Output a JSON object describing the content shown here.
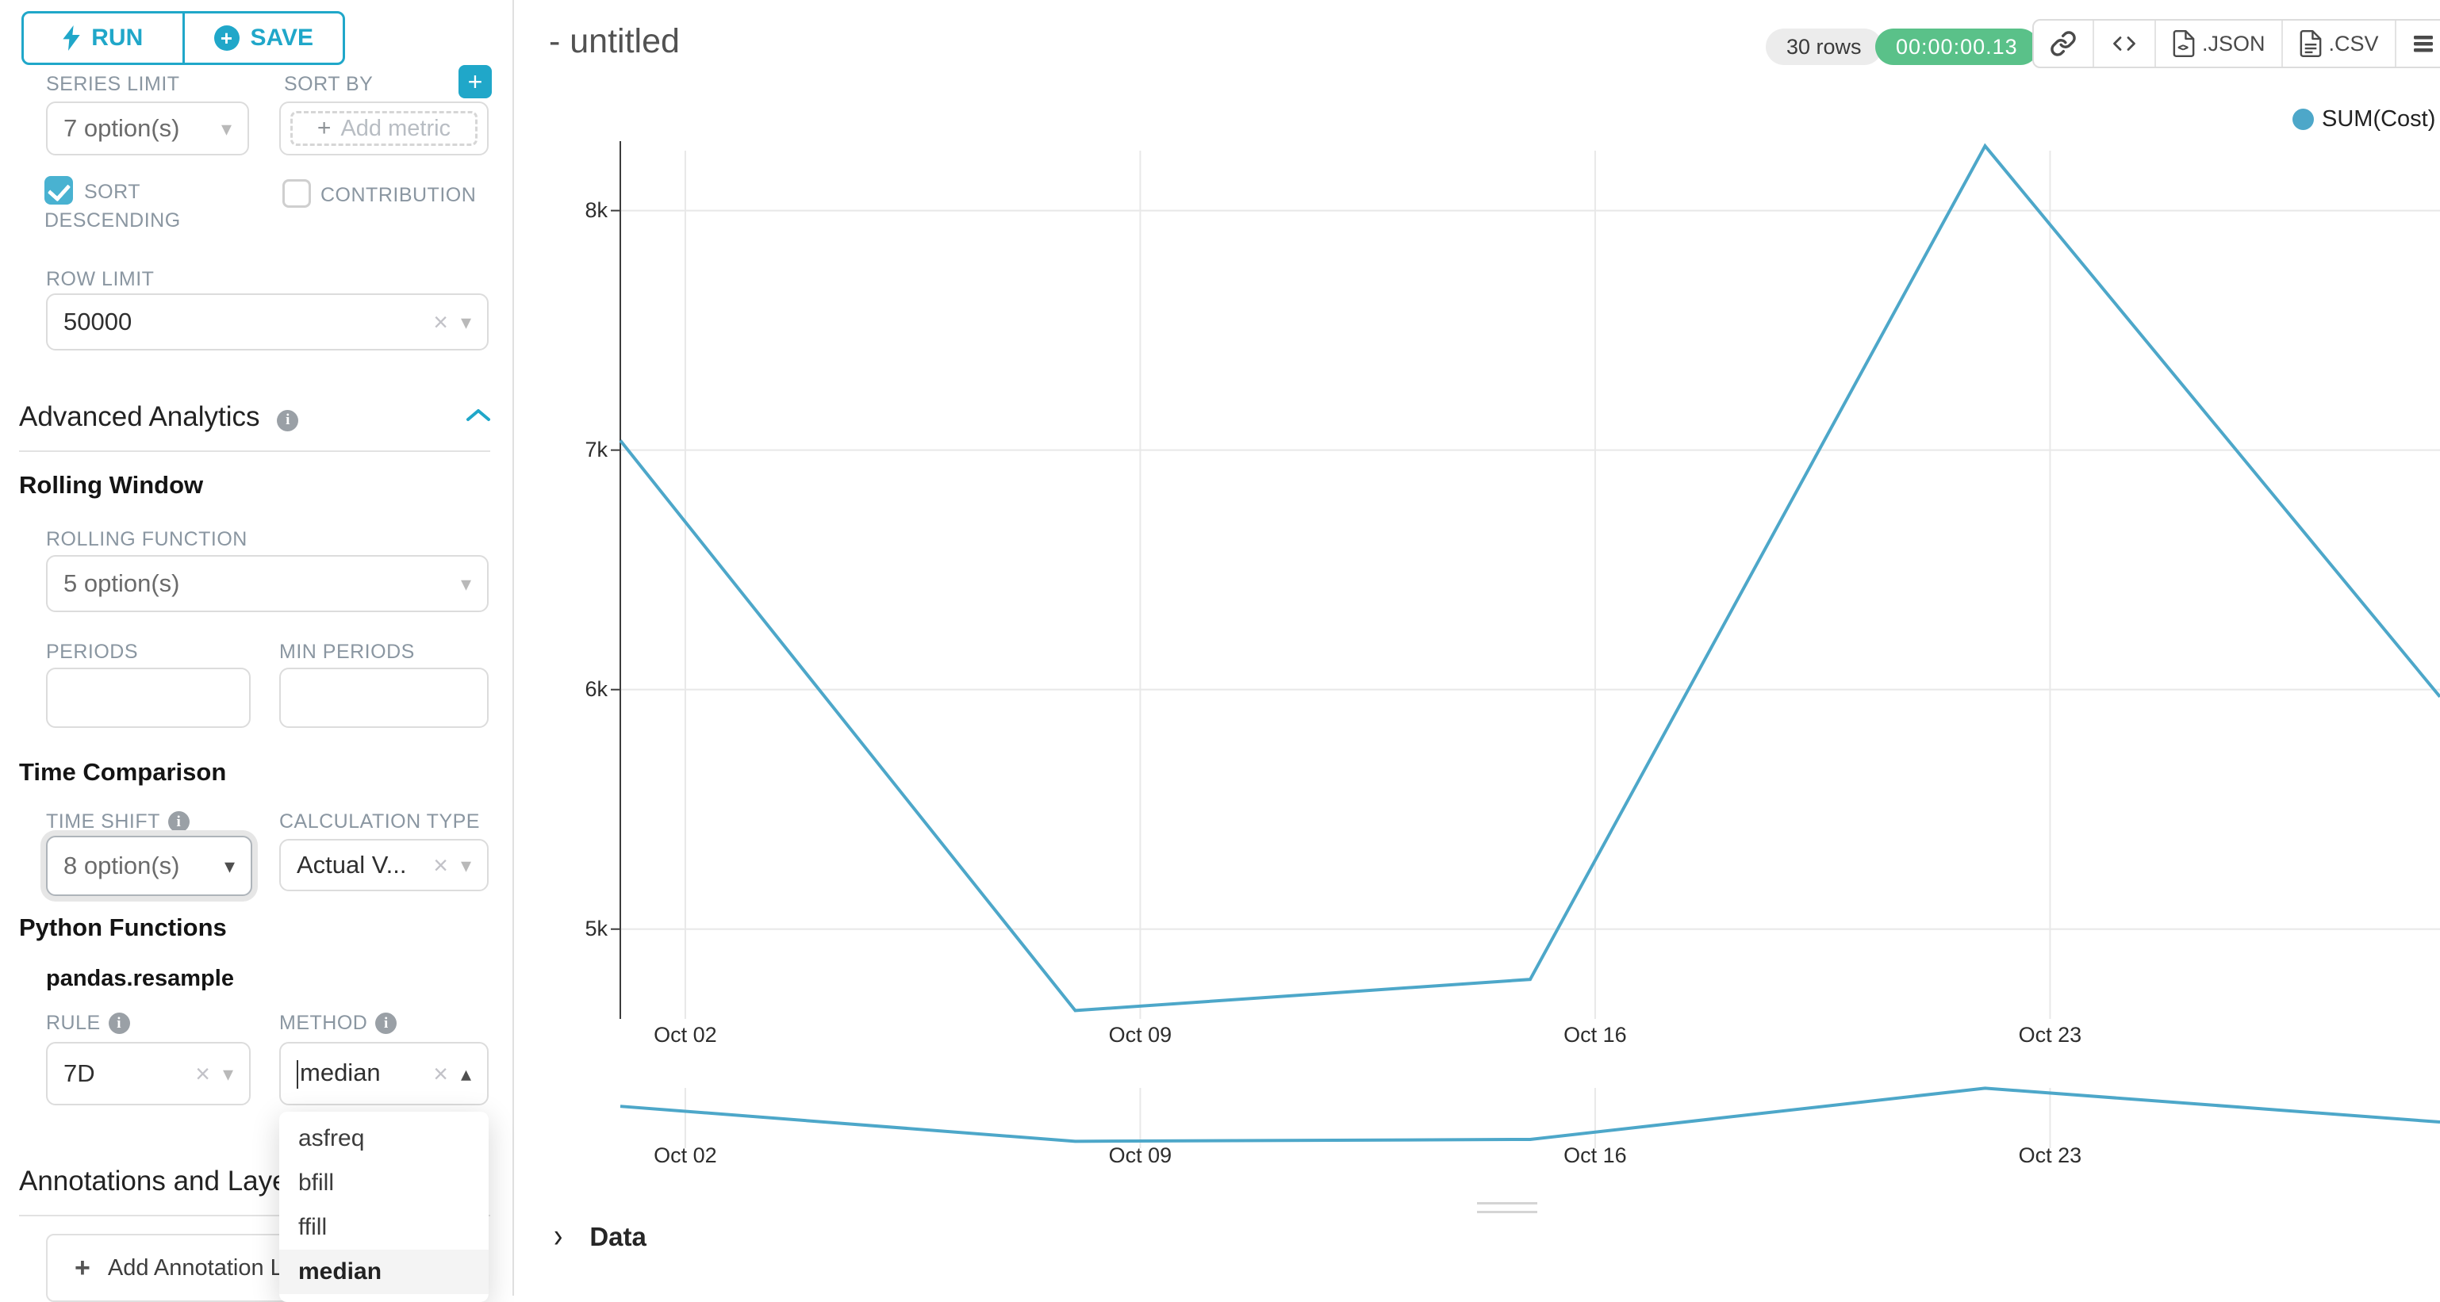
{
  "sidebar": {
    "run_label": "RUN",
    "save_label": "SAVE",
    "series_limit": {
      "label": "SERIES LIMIT",
      "value": "7 option(s)"
    },
    "sort_by": {
      "label": "SORT BY",
      "placeholder": "Add metric"
    },
    "sort_descending": {
      "label_line1": "SORT",
      "label_line2": "DESCENDING",
      "checked": true
    },
    "contribution": {
      "label": "CONTRIBUTION",
      "checked": false
    },
    "row_limit": {
      "label": "ROW LIMIT",
      "value": "50000"
    },
    "advanced_analytics": {
      "title": "Advanced Analytics"
    },
    "rolling_window": {
      "title": "Rolling Window",
      "rolling_function": {
        "label": "ROLLING FUNCTION",
        "value": "5 option(s)"
      },
      "periods_label": "PERIODS",
      "min_periods_label": "MIN PERIODS"
    },
    "time_comparison": {
      "title": "Time Comparison",
      "time_shift": {
        "label": "TIME SHIFT",
        "value": "8 option(s)"
      },
      "calculation_type": {
        "label": "CALCULATION TYPE",
        "value": "Actual V..."
      }
    },
    "python_functions": {
      "title": "Python Functions",
      "subtitle": "pandas.resample",
      "rule": {
        "label": "RULE",
        "value": "7D"
      },
      "method": {
        "label": "METHOD",
        "value": "median",
        "options": [
          "asfreq",
          "bfill",
          "ffill",
          "median"
        ],
        "selected": "median"
      }
    },
    "annotations": {
      "title": "Annotations and Layers",
      "add_button": "Add Annotation Layer"
    }
  },
  "header": {
    "title": "- untitled",
    "rows_badge": "30 rows",
    "timer": "00:00:00.13",
    "timer_color": "#5AC189",
    "json_label": ".JSON",
    "csv_label": ".CSV"
  },
  "legend": {
    "label": "SUM(Cost)",
    "color": "#4DA7C9"
  },
  "data_panel": {
    "label": "Data",
    "chevron": "›"
  },
  "icons": {
    "clear": "×",
    "caret_down": "▾",
    "caret_up": "▴",
    "plus": "+",
    "info": "i"
  },
  "chart_data": {
    "type": "line",
    "title": "",
    "xlabel": "",
    "ylabel": "",
    "legend_position": "top-right",
    "grid": true,
    "line_color": "#4DA7C9",
    "grid_color": "#e8e8e8",
    "axis_color": "#3c3c3c",
    "day_domain": [
      1,
      29
    ],
    "y_range": [
      4625,
      8290
    ],
    "series": [
      {
        "name": "SUM(Cost)",
        "points": [
          {
            "date": "Oct 01",
            "day": 1,
            "value": 7040
          },
          {
            "date": "Oct 08",
            "day": 8,
            "value": 4660
          },
          {
            "date": "Oct 15",
            "day": 15,
            "value": 4790
          },
          {
            "date": "Oct 22",
            "day": 22,
            "value": 8270
          },
          {
            "date": "Oct 29",
            "day": 29,
            "value": 5970
          }
        ]
      }
    ],
    "x_ticks": [
      {
        "day": 2,
        "label": "Oct 02"
      },
      {
        "day": 9,
        "label": "Oct 09"
      },
      {
        "day": 16,
        "label": "Oct 16"
      },
      {
        "day": 23,
        "label": "Oct 23"
      }
    ],
    "y_ticks": [
      {
        "value": 5000,
        "label": "5k"
      },
      {
        "value": 6000,
        "label": "6k"
      },
      {
        "value": 7000,
        "label": "7k"
      },
      {
        "value": 8000,
        "label": "8k"
      }
    ],
    "mini_chart": {
      "present": true,
      "x_ticks": [
        "Oct 02",
        "Oct 09",
        "Oct 16",
        "Oct 23"
      ]
    }
  }
}
